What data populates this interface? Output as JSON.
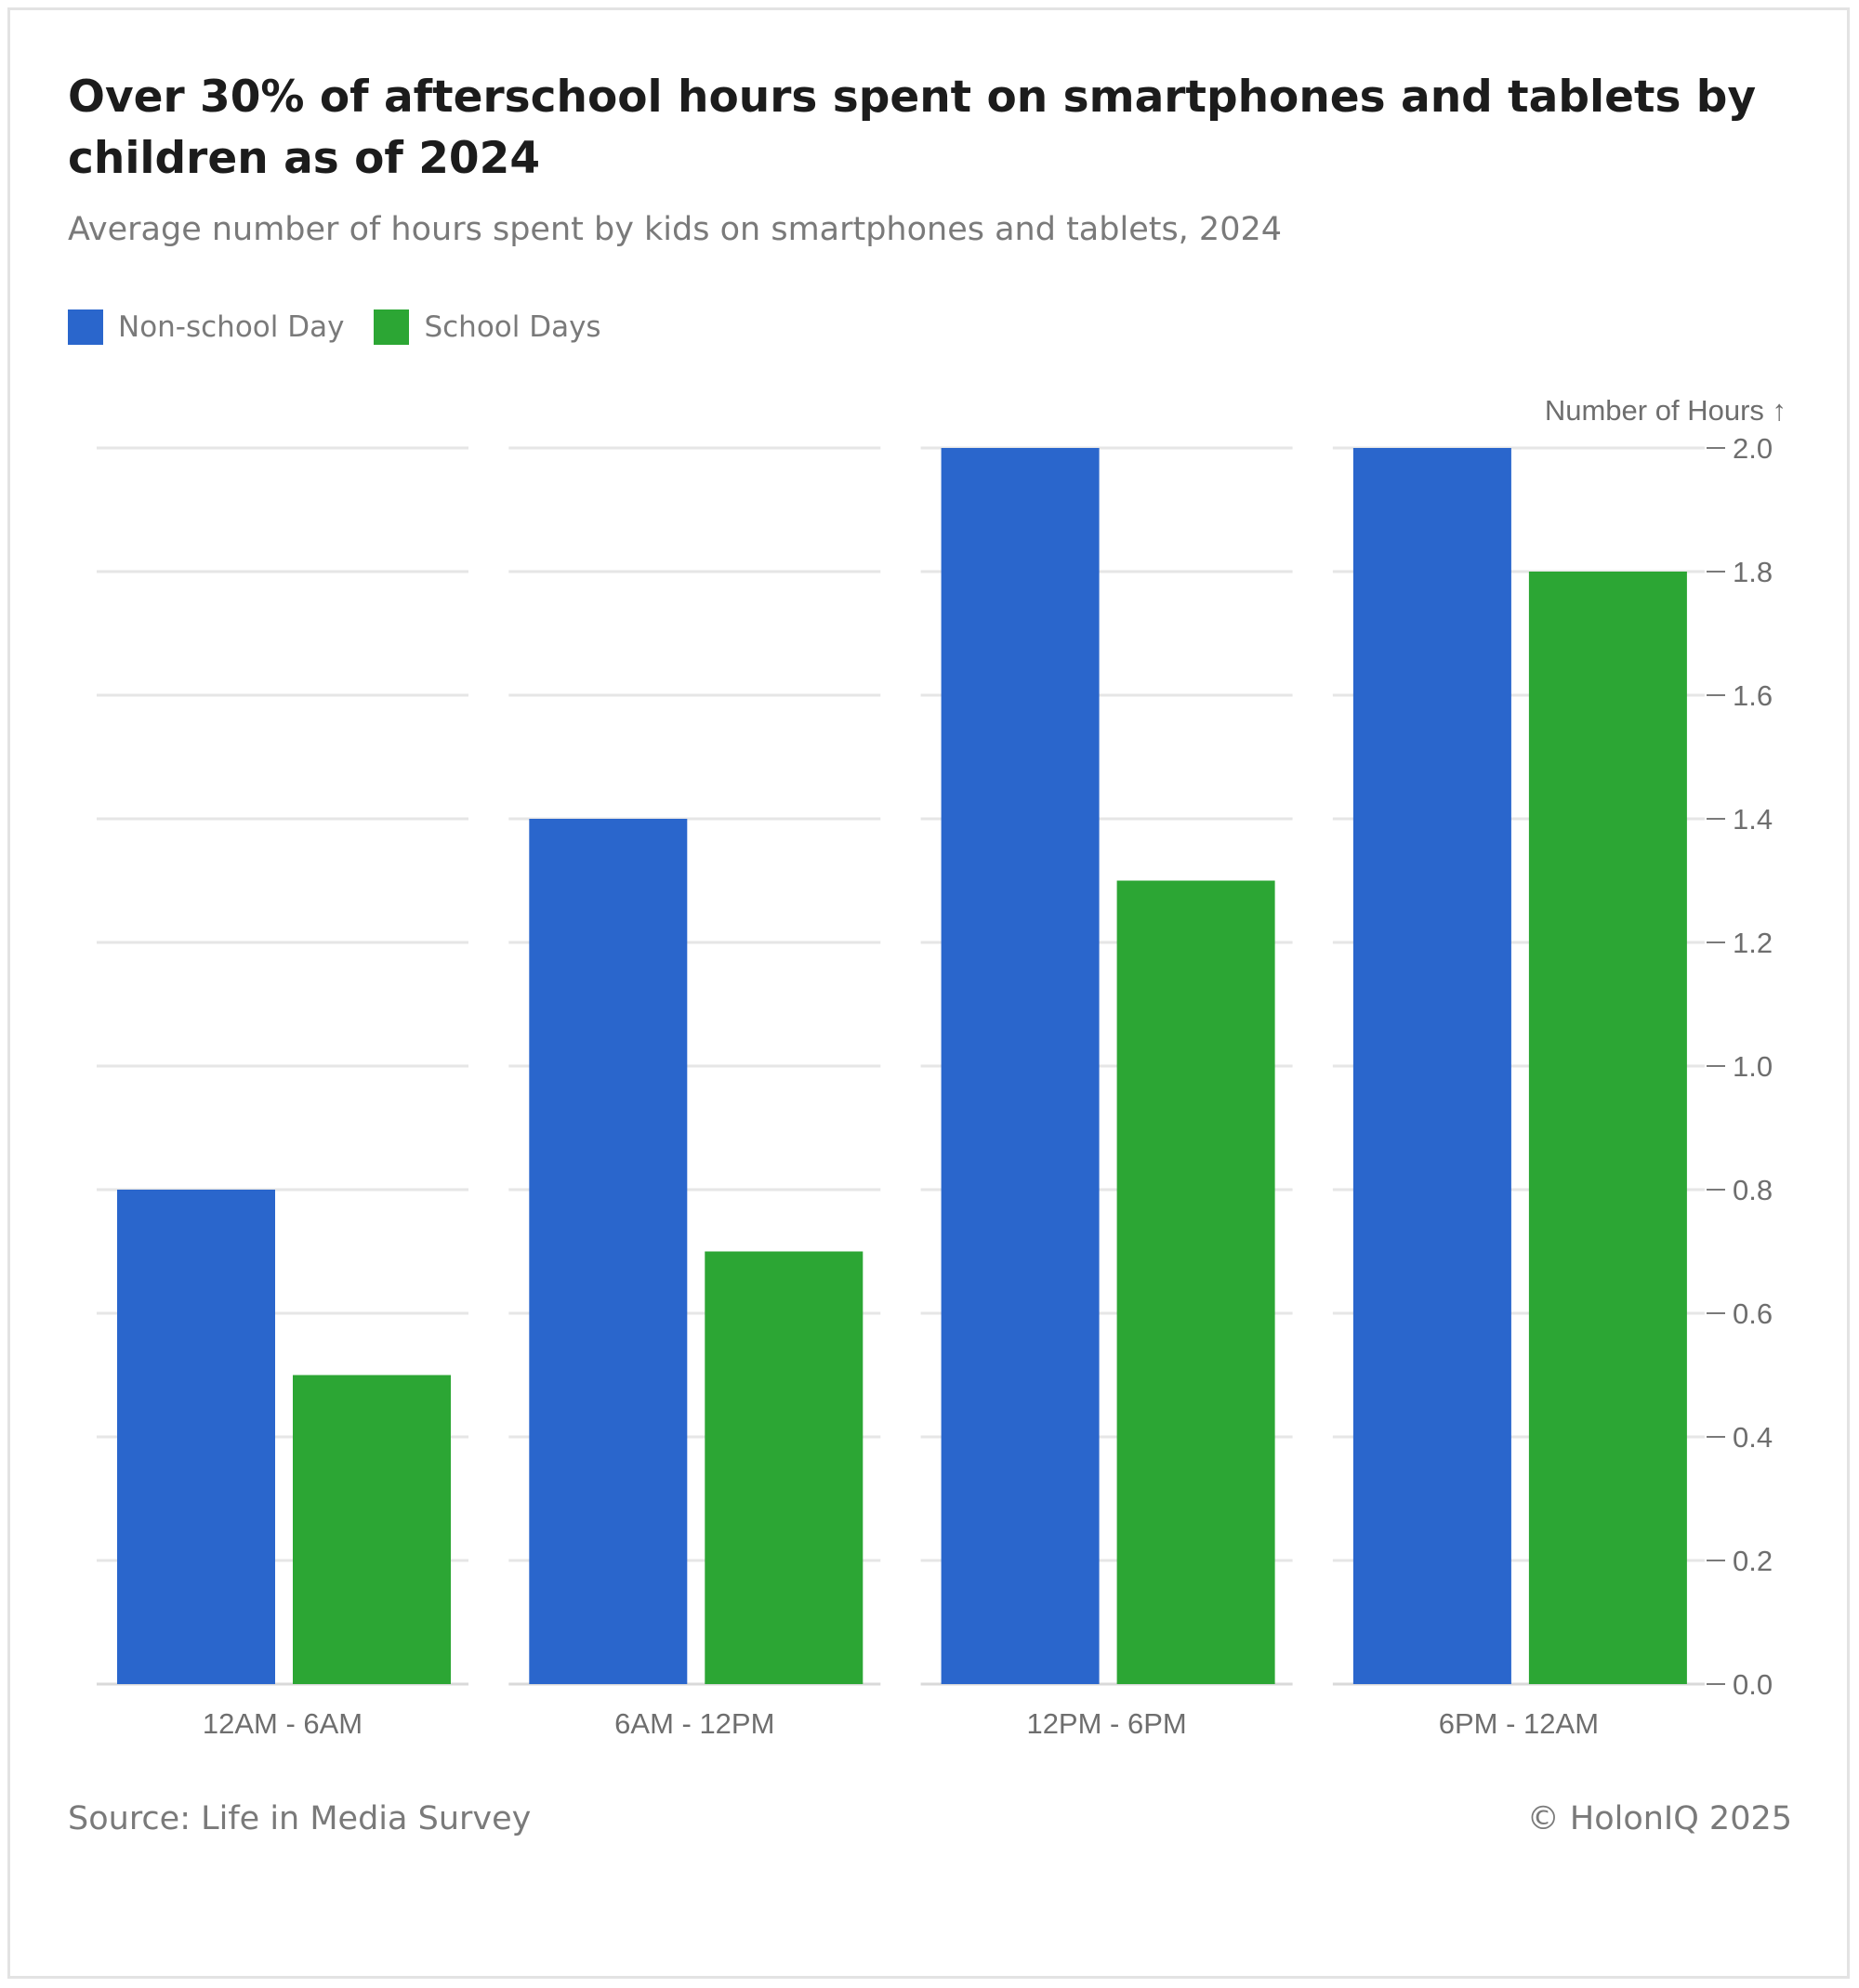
{
  "header": {
    "title": "Over 30% of afterschool hours spent on smartphones and tablets by children as of 2024",
    "subtitle": "Average number of hours spent by kids on smartphones and tablets, 2024"
  },
  "legend": {
    "items": [
      {
        "label": "Non-school Day",
        "color": "#2a66cc"
      },
      {
        "label": "School Days",
        "color": "#2ca634"
      }
    ]
  },
  "footer": {
    "source": "Source: Life in Media Survey",
    "credit": "© HolonIQ 2025"
  },
  "chart_data": {
    "type": "bar",
    "title": "Over 30% of afterschool hours spent on smartphones and tablets by children as of 2024",
    "subtitle": "Average number of hours spent by kids on smartphones and tablets, 2024",
    "xlabel": "",
    "ylabel": "Number of Hours ↑",
    "ylim": [
      0,
      2.0
    ],
    "yticks": [
      "0.0",
      "0.2",
      "0.4",
      "0.6",
      "0.8",
      "1.0",
      "1.2",
      "1.4",
      "1.6",
      "1.8",
      "2.0"
    ],
    "y_axis_position": "right",
    "grid": true,
    "legend_position": "top-left",
    "categories": [
      "12AM - 6AM",
      "6AM - 12PM",
      "12PM - 6PM",
      "6PM - 12AM"
    ],
    "series": [
      {
        "name": "Non-school Day",
        "color": "#2a66cc",
        "values": [
          0.8,
          1.4,
          2.0,
          2.0
        ]
      },
      {
        "name": "School Days",
        "color": "#2ca634",
        "values": [
          0.5,
          0.7,
          1.3,
          1.8
        ]
      }
    ]
  }
}
